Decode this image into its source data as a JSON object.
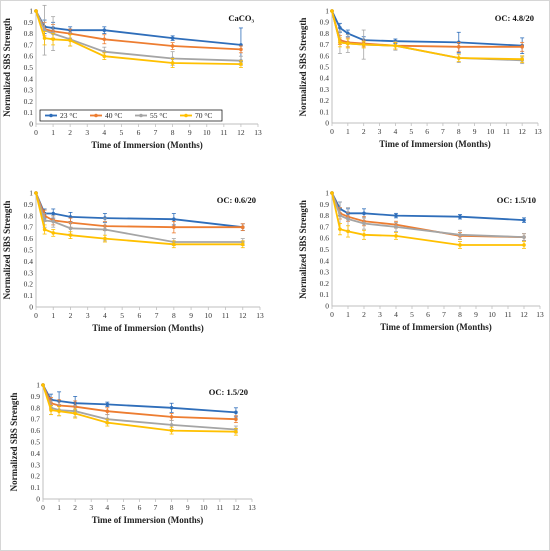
{
  "figure": {
    "xlabel": "Time of Immersion (Months)",
    "ylabel": "Normalized SBS Strength",
    "legend": {
      "placement": "inside lower-left of first panel",
      "labels": [
        "23 °C",
        "40 °C",
        "55 °C",
        "70 °C"
      ]
    },
    "series_colors": [
      "#2F6EBA",
      "#ED7D31",
      "#A5A5A5",
      "#FFC000"
    ]
  },
  "chart_data": [
    {
      "type": "line",
      "title": "CaCO₃",
      "x": [
        0,
        0.5,
        1,
        2,
        4,
        8,
        12
      ],
      "xlim": [
        0,
        13
      ],
      "xticks": [
        0,
        1,
        2,
        3,
        4,
        5,
        6,
        7,
        8,
        9,
        10,
        11,
        12,
        13
      ],
      "ylim": [
        0,
        1
      ],
      "yticks": [
        0,
        0.1,
        0.2,
        0.3,
        0.4,
        0.5,
        0.6,
        0.7,
        0.8,
        0.9,
        1
      ],
      "xlabel": "Time of Immersion (Months)",
      "ylabel": "Normalized SBS Strength",
      "grid": false,
      "legend_placement": "lower-left",
      "series": [
        {
          "name": "23 °C",
          "color": "#2F6EBA",
          "values": [
            1,
            0.86,
            0.85,
            0.83,
            0.83,
            0.76,
            0.7
          ],
          "errors": [
            0,
            0.06,
            0.05,
            0.03,
            0.03,
            0.02,
            0.15
          ]
        },
        {
          "name": "40 °C",
          "color": "#ED7D31",
          "values": [
            1,
            0.84,
            0.82,
            0.8,
            0.75,
            0.69,
            0.66
          ],
          "errors": [
            0,
            0.06,
            0.06,
            0.04,
            0.04,
            0.03,
            0.03
          ]
        },
        {
          "name": "55 °C",
          "color": "#A5A5A5",
          "values": [
            1,
            0.83,
            0.8,
            0.75,
            0.64,
            0.58,
            0.56
          ],
          "errors": [
            0,
            0.22,
            0.15,
            0.06,
            0.04,
            0.06,
            0.04
          ]
        },
        {
          "name": "70 °C",
          "color": "#FFC000",
          "values": [
            1,
            0.76,
            0.75,
            0.74,
            0.6,
            0.54,
            0.53
          ],
          "errors": [
            0,
            0.06,
            0.05,
            0.05,
            0.03,
            0.04,
            0.03
          ]
        }
      ]
    },
    {
      "type": "line",
      "title": "OC: 4.8/20",
      "x": [
        0,
        0.5,
        1,
        2,
        4,
        8,
        12
      ],
      "xlim": [
        0,
        13
      ],
      "xticks": [
        0,
        1,
        2,
        3,
        4,
        5,
        6,
        7,
        8,
        9,
        10,
        11,
        12,
        13
      ],
      "ylim": [
        0,
        1
      ],
      "yticks": [
        0,
        0.1,
        0.2,
        0.3,
        0.4,
        0.5,
        0.6,
        0.7,
        0.8,
        0.9,
        1
      ],
      "xlabel": "Time of Immersion (Months)",
      "ylabel": "Normalized SBS Strength",
      "grid": false,
      "series": [
        {
          "name": "23 °C",
          "color": "#2F6EBA",
          "values": [
            1,
            0.85,
            0.8,
            0.74,
            0.73,
            0.72,
            0.69
          ],
          "errors": [
            0,
            0.04,
            0.03,
            0.03,
            0.02,
            0.09,
            0.07
          ]
        },
        {
          "name": "40 °C",
          "color": "#ED7D31",
          "values": [
            1,
            0.74,
            0.72,
            0.71,
            0.69,
            0.68,
            0.68
          ],
          "errors": [
            0,
            0.04,
            0.04,
            0.03,
            0.03,
            0.04,
            0.04
          ]
        },
        {
          "name": "55 °C",
          "color": "#A5A5A5",
          "values": [
            1,
            0.72,
            0.71,
            0.7,
            0.69,
            0.58,
            0.56
          ],
          "errors": [
            0,
            0.1,
            0.08,
            0.13,
            0.04,
            0.04,
            0.03
          ]
        },
        {
          "name": "70 °C",
          "color": "#FFC000",
          "values": [
            1,
            0.72,
            0.71,
            0.7,
            0.69,
            0.58,
            0.57
          ],
          "errors": [
            0,
            0.04,
            0.04,
            0.03,
            0.03,
            0.03,
            0.03
          ]
        }
      ]
    },
    {
      "type": "line",
      "title": "OC: 0.6/20",
      "x": [
        0,
        0.5,
        1,
        2,
        4,
        8,
        12
      ],
      "xlim": [
        0,
        13
      ],
      "xticks": [
        0,
        1,
        2,
        3,
        4,
        5,
        6,
        7,
        8,
        9,
        10,
        11,
        12,
        13
      ],
      "ylim": [
        0,
        1
      ],
      "yticks": [
        0,
        0.1,
        0.2,
        0.3,
        0.4,
        0.5,
        0.6,
        0.7,
        0.8,
        0.9,
        1
      ],
      "xlabel": "Time of Immersion (Months)",
      "ylabel": "Normalized SBS Strength",
      "grid": false,
      "series": [
        {
          "name": "23 °C",
          "color": "#2F6EBA",
          "values": [
            1,
            0.82,
            0.82,
            0.79,
            0.78,
            0.77,
            0.7
          ],
          "errors": [
            0,
            0.04,
            0.04,
            0.04,
            0.04,
            0.05,
            0.03
          ]
        },
        {
          "name": "40 °C",
          "color": "#ED7D31",
          "values": [
            1,
            0.8,
            0.76,
            0.74,
            0.71,
            0.7,
            0.7
          ],
          "errors": [
            0,
            0.05,
            0.04,
            0.04,
            0.04,
            0.05,
            0.03
          ]
        },
        {
          "name": "55 °C",
          "color": "#A5A5A5",
          "values": [
            1,
            0.76,
            0.75,
            0.69,
            0.68,
            0.57,
            0.57
          ],
          "errors": [
            0,
            0.06,
            0.05,
            0.05,
            0.1,
            0.03,
            0.03
          ]
        },
        {
          "name": "70 °C",
          "color": "#FFC000",
          "values": [
            1,
            0.68,
            0.65,
            0.63,
            0.6,
            0.55,
            0.55
          ],
          "errors": [
            0,
            0.04,
            0.03,
            0.03,
            0.03,
            0.03,
            0.03
          ]
        }
      ]
    },
    {
      "type": "line",
      "title": "OC: 1.5/10",
      "x": [
        0,
        0.5,
        1,
        2,
        4,
        8,
        12
      ],
      "xlim": [
        0,
        13
      ],
      "xticks": [
        0,
        1,
        2,
        3,
        4,
        5,
        6,
        7,
        8,
        9,
        10,
        11,
        12,
        13
      ],
      "ylim": [
        0,
        1
      ],
      "yticks": [
        0,
        0.1,
        0.2,
        0.3,
        0.4,
        0.5,
        0.6,
        0.7,
        0.8,
        0.9,
        1
      ],
      "xlabel": "Time of Immersion (Months)",
      "ylabel": "Normalized SBS Strength",
      "grid": false,
      "series": [
        {
          "name": "23 °C",
          "color": "#2F6EBA",
          "values": [
            1,
            0.86,
            0.82,
            0.82,
            0.8,
            0.79,
            0.76
          ],
          "errors": [
            0,
            0.06,
            0.04,
            0.04,
            0.02,
            0.02,
            0.02
          ]
        },
        {
          "name": "40 °C",
          "color": "#ED7D31",
          "values": [
            1,
            0.82,
            0.79,
            0.75,
            0.72,
            0.62,
            0.61
          ],
          "errors": [
            0,
            0.05,
            0.04,
            0.04,
            0.03,
            0.03,
            0.03
          ]
        },
        {
          "name": "55 °C",
          "color": "#A5A5A5",
          "values": [
            1,
            0.8,
            0.77,
            0.73,
            0.7,
            0.63,
            0.61
          ],
          "errors": [
            0,
            0.12,
            0.1,
            0.05,
            0.04,
            0.04,
            0.03
          ]
        },
        {
          "name": "70 °C",
          "color": "#FFC000",
          "values": [
            1,
            0.68,
            0.66,
            0.63,
            0.62,
            0.54,
            0.54
          ],
          "errors": [
            0,
            0.05,
            0.05,
            0.04,
            0.03,
            0.03,
            0.03
          ]
        }
      ]
    },
    {
      "type": "line",
      "title": "OC: 1.5/20",
      "x": [
        0,
        0.5,
        1,
        2,
        4,
        8,
        12
      ],
      "xlim": [
        0,
        13
      ],
      "xticks": [
        0,
        1,
        2,
        3,
        4,
        5,
        6,
        7,
        8,
        9,
        10,
        11,
        12,
        13
      ],
      "ylim": [
        0,
        1
      ],
      "yticks": [
        0,
        0.1,
        0.2,
        0.3,
        0.4,
        0.5,
        0.6,
        0.7,
        0.8,
        0.9,
        1
      ],
      "xlabel": "Time of Immersion (Months)",
      "ylabel": "Normalized SBS Strength",
      "grid": false,
      "series": [
        {
          "name": "23 °C",
          "color": "#2F6EBA",
          "values": [
            1,
            0.87,
            0.86,
            0.84,
            0.83,
            0.8,
            0.76
          ],
          "errors": [
            0,
            0.05,
            0.08,
            0.06,
            0.02,
            0.04,
            0.04
          ]
        },
        {
          "name": "40 °C",
          "color": "#ED7D31",
          "values": [
            1,
            0.84,
            0.82,
            0.81,
            0.77,
            0.72,
            0.7
          ],
          "errors": [
            0,
            0.05,
            0.05,
            0.05,
            0.03,
            0.03,
            0.03
          ]
        },
        {
          "name": "55 °C",
          "color": "#A5A5A5",
          "values": [
            1,
            0.8,
            0.78,
            0.77,
            0.7,
            0.65,
            0.61
          ],
          "errors": [
            0,
            0.06,
            0.05,
            0.05,
            0.04,
            0.04,
            0.03
          ]
        },
        {
          "name": "70 °C",
          "color": "#FFC000",
          "values": [
            1,
            0.78,
            0.77,
            0.75,
            0.67,
            0.6,
            0.59
          ],
          "errors": [
            0,
            0.04,
            0.04,
            0.04,
            0.03,
            0.03,
            0.03
          ]
        }
      ]
    }
  ]
}
